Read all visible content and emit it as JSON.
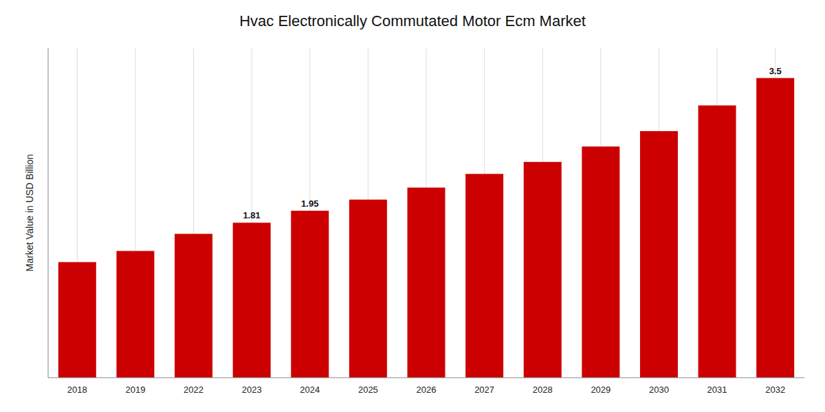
{
  "chart_data": {
    "type": "bar",
    "title": "Hvac Electronically Commutated Motor Ecm Market",
    "ylabel": "Market Value in USD Billion",
    "categories": [
      "2018",
      "2019",
      "2022",
      "2023",
      "2024",
      "2025",
      "2026",
      "2027",
      "2028",
      "2029",
      "2030",
      "2031",
      "2032"
    ],
    "values": [
      1.35,
      1.48,
      1.68,
      1.81,
      1.95,
      2.08,
      2.22,
      2.38,
      2.52,
      2.7,
      2.88,
      3.18,
      3.5
    ],
    "color": "#cc0000",
    "ylim": [
      0,
      3.85
    ],
    "grid": true,
    "tick_labels": "x",
    "data_labels": true,
    "value_labels": [
      null,
      null,
      null,
      "1.81",
      "1.95",
      null,
      null,
      null,
      null,
      null,
      null,
      null,
      "3.5"
    ]
  }
}
